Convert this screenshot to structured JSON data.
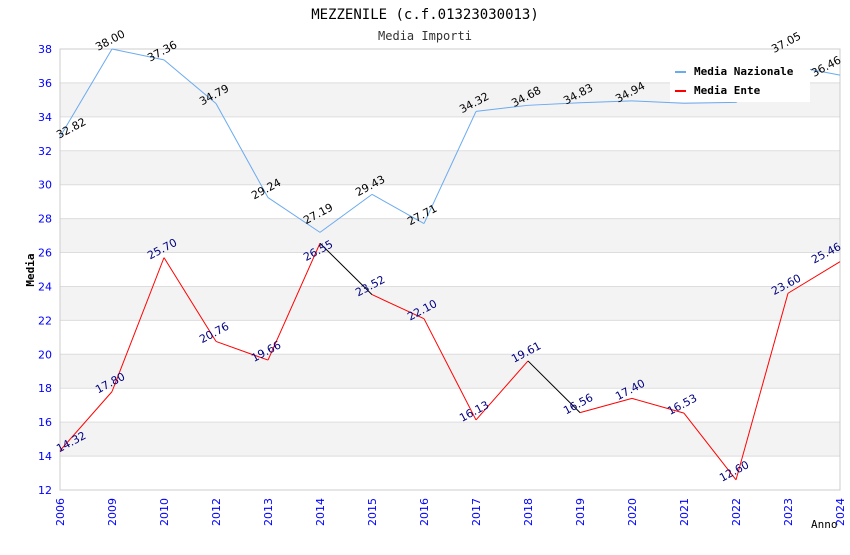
{
  "chart_data": {
    "type": "line",
    "title": "MEZZENILE (c.f.01323030013)",
    "subtitle": "Media Importi",
    "xlabel": "Anno",
    "ylabel": "Media",
    "ylim": [
      12,
      38
    ],
    "yticks": [
      12,
      14,
      16,
      18,
      20,
      22,
      24,
      26,
      28,
      30,
      32,
      34,
      36,
      38
    ],
    "categories": [
      "2006",
      "2009",
      "2010",
      "2012",
      "2013",
      "2014",
      "2015",
      "2016",
      "2017",
      "2018",
      "2019",
      "2020",
      "2021",
      "2022",
      "2023",
      "2024"
    ],
    "series": [
      {
        "name": "Media Nazionale",
        "color": "#6aaaf0",
        "label_color": "#000000",
        "values": [
          32.82,
          38.0,
          37.36,
          34.79,
          29.24,
          27.19,
          29.43,
          27.71,
          34.32,
          34.68,
          34.83,
          34.94,
          34.8,
          34.85,
          37.05,
          36.46
        ],
        "labels": [
          "32.82",
          "38.00",
          "37.36",
          "34.79",
          "29.24",
          "27.19",
          "29.43",
          "27.71",
          "34.32",
          "34.68",
          "34.83",
          "34.94",
          null,
          null,
          "37.05",
          "36.46"
        ]
      },
      {
        "name": "Media Ente",
        "color": "#ff0000",
        "label_color": "#000080",
        "values": [
          14.32,
          17.8,
          25.7,
          20.76,
          19.66,
          26.55,
          23.52,
          22.1,
          16.13,
          19.61,
          16.56,
          17.4,
          16.53,
          12.6,
          23.6,
          25.46
        ],
        "labels": [
          "14.32",
          "17.80",
          "25.70",
          "20.76",
          "19.66",
          "26.55",
          "23.52",
          "22.10",
          "16.13",
          "19.61",
          "16.56",
          "17.40",
          "16.53",
          "12.60",
          "23.60",
          "25.46"
        ]
      }
    ],
    "legend": "top-right",
    "grid": true
  }
}
